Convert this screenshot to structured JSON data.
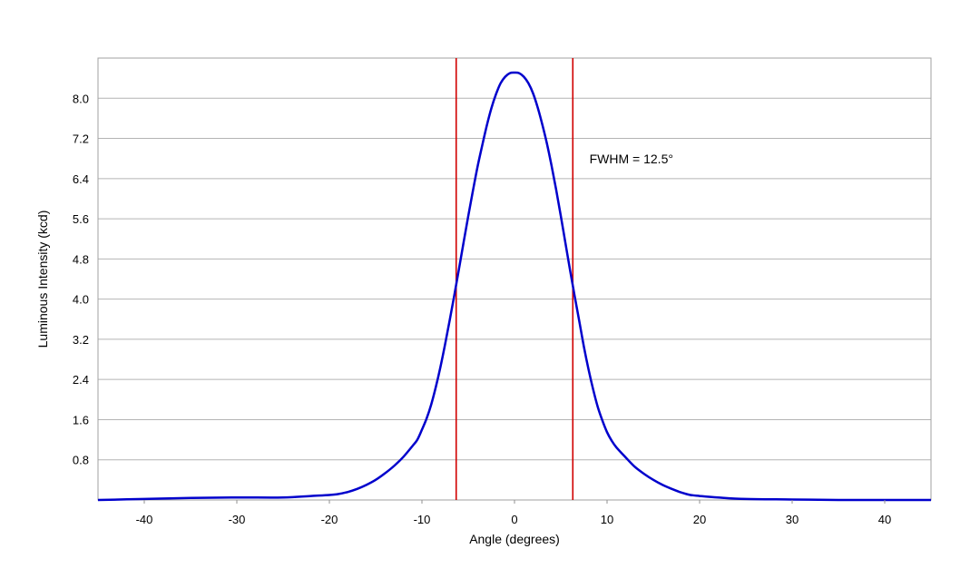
{
  "chart_data": {
    "type": "line",
    "title": "",
    "xlabel": "Angle (degrees)",
    "ylabel": "Luminous Intensity (kcd)",
    "xlim": [
      -45,
      45
    ],
    "ylim": [
      0,
      8.8
    ],
    "xticks": [
      -40,
      -30,
      -20,
      -10,
      0,
      10,
      20,
      30,
      40
    ],
    "xtick_labels": [
      "-40",
      "-30",
      "-20",
      "-10",
      "0",
      "10",
      "20",
      "30",
      "40"
    ],
    "yticks": [
      0.8,
      1.6,
      2.4,
      3.2,
      4.0,
      4.8,
      5.6,
      6.4,
      7.2,
      8.0
    ],
    "ytick_labels": [
      "0.8",
      "1.6",
      "2.4",
      "3.2",
      "4.0",
      "4.8",
      "5.6",
      "6.4",
      "7.2",
      "8.0"
    ],
    "grid": true,
    "series": [
      {
        "color": "#0000cc",
        "x": [
          -45,
          -40,
          -35,
          -30,
          -25,
          -22,
          -20,
          -19,
          -18,
          -17,
          -16,
          -15,
          -14,
          -13,
          -12,
          -11,
          -10.5,
          -10,
          -9.5,
          -9,
          -8.5,
          -8,
          -7.5,
          -7,
          -6.5,
          -6,
          -5.5,
          -5,
          -4.5,
          -4,
          -3.5,
          -3,
          -2.5,
          -2,
          -1.5,
          -1,
          -0.5,
          0,
          0.5,
          1,
          1.5,
          2,
          2.5,
          3,
          3.5,
          4,
          4.5,
          5,
          5.5,
          6,
          6.5,
          7,
          7.5,
          8,
          8.5,
          9,
          9.5,
          10,
          10.5,
          11,
          12,
          13,
          14,
          15,
          16,
          17,
          18,
          19,
          20,
          22,
          25,
          30,
          35,
          40,
          45
        ],
        "y": [
          0.0,
          0.02,
          0.04,
          0.05,
          0.05,
          0.08,
          0.1,
          0.12,
          0.16,
          0.22,
          0.3,
          0.4,
          0.53,
          0.68,
          0.86,
          1.08,
          1.2,
          1.4,
          1.62,
          1.9,
          2.25,
          2.65,
          3.1,
          3.58,
          4.08,
          4.6,
          5.13,
          5.65,
          6.15,
          6.63,
          7.05,
          7.45,
          7.8,
          8.08,
          8.3,
          8.43,
          8.5,
          8.51,
          8.5,
          8.43,
          8.3,
          8.1,
          7.82,
          7.48,
          7.1,
          6.66,
          6.18,
          5.66,
          5.12,
          4.58,
          4.06,
          3.56,
          3.05,
          2.6,
          2.2,
          1.85,
          1.58,
          1.35,
          1.18,
          1.05,
          0.85,
          0.66,
          0.52,
          0.4,
          0.3,
          0.22,
          0.15,
          0.1,
          0.08,
          0.05,
          0.02,
          0.01,
          0.0,
          0.0,
          0.0
        ]
      }
    ],
    "vlines": [
      {
        "x": -6.3,
        "color": "#d00000"
      },
      {
        "x": 6.3,
        "color": "#d00000"
      }
    ],
    "annotations": [
      {
        "text": "FWHM = 12.5°",
        "x": 8.1,
        "y": 6.7
      }
    ]
  }
}
